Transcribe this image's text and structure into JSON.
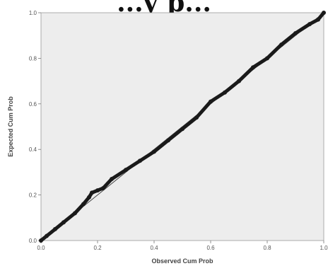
{
  "header": {
    "title_fragment": "...y p..."
  },
  "chart_data": {
    "type": "line",
    "title": "",
    "xlabel": "Observed Cum Prob",
    "ylabel": "Expected Cum Prob",
    "xlim": [
      0,
      1
    ],
    "ylim": [
      0,
      1
    ],
    "x_ticks": [
      0,
      0.2,
      0.4,
      0.6,
      0.8,
      1
    ],
    "y_ticks": [
      0,
      0.2,
      0.4,
      0.6,
      0.8,
      1
    ],
    "x_tick_labels": [
      "0.0",
      "0.2",
      "0.4",
      "0.6",
      "0.8",
      "1.0"
    ],
    "y_tick_labels": [
      "0.0",
      "0.2",
      "0.4",
      "0.6",
      "0.8",
      "1.0"
    ],
    "grid": false,
    "legend": "none",
    "plot_background": "#ededed",
    "series": [
      {
        "color": "#1a1a1a",
        "x": [
          0,
          0.02,
          0.05,
          0.08,
          0.12,
          0.15,
          0.17,
          0.18,
          0.2,
          0.22,
          0.25,
          0.3,
          0.35,
          0.4,
          0.45,
          0.5,
          0.55,
          0.6,
          0.65,
          0.7,
          0.75,
          0.8,
          0.85,
          0.9,
          0.95,
          0.98,
          1
        ],
        "y": [
          0,
          0.02,
          0.05,
          0.08,
          0.12,
          0.16,
          0.19,
          0.21,
          0.22,
          0.23,
          0.27,
          0.31,
          0.35,
          0.39,
          0.44,
          0.49,
          0.54,
          0.61,
          0.65,
          0.7,
          0.76,
          0.8,
          0.86,
          0.91,
          0.95,
          0.97,
          1
        ]
      }
    ],
    "reference_line": {
      "color": "#444444",
      "x": [
        0,
        1
      ],
      "y": [
        0,
        1
      ]
    }
  }
}
